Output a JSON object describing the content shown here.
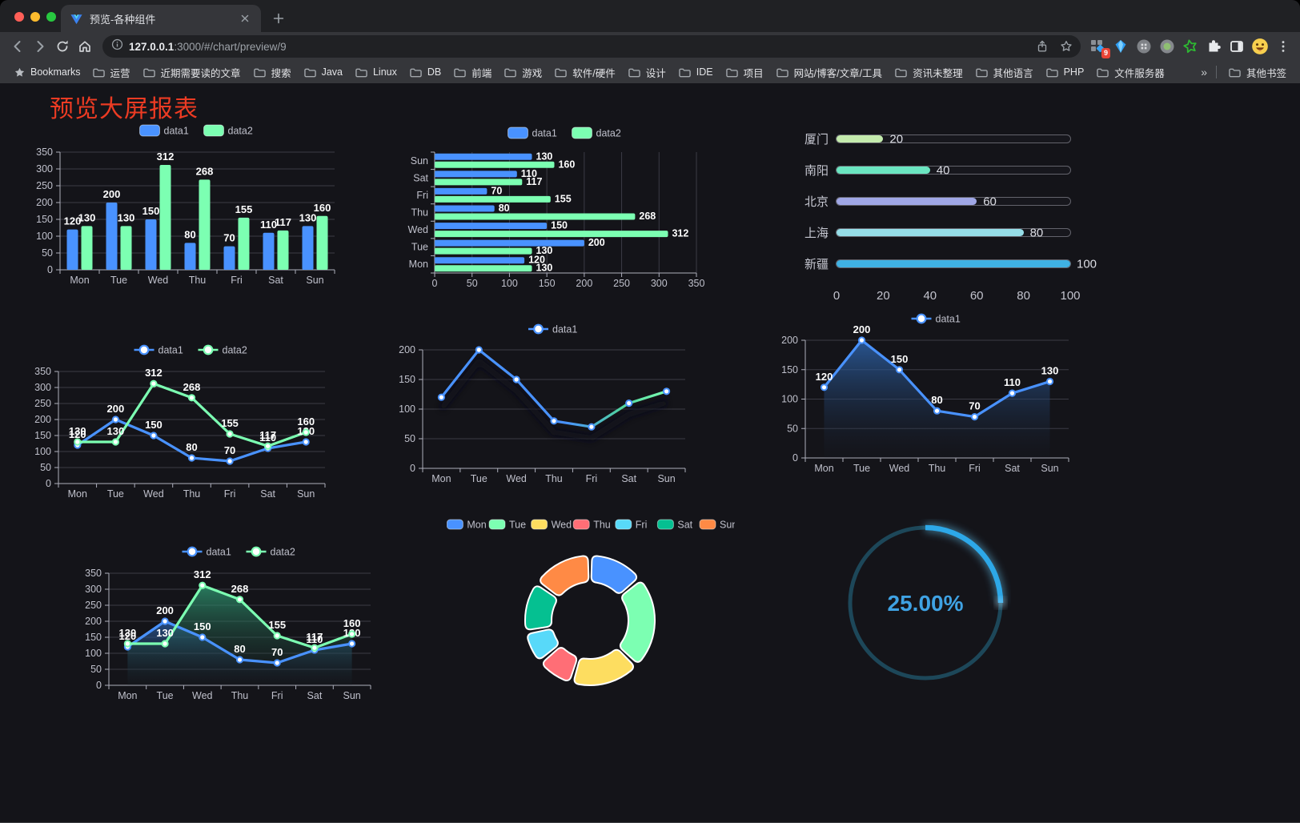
{
  "browser": {
    "tab_title": "预览-各种组件",
    "url_host": "127.0.0.1",
    "url_rest": ":3000/#/chart/preview/9",
    "extension_badge": "9",
    "bookmarks_root_label": "Bookmarks",
    "bookmark_folders": [
      "运营",
      "近期需要读的文章",
      "搜索",
      "Java",
      "Linux",
      "DB",
      "前端",
      "游戏",
      "软件/硬件",
      "设计",
      "IDE",
      "项目",
      "网站/博客/文章/工具",
      "资讯未整理",
      "其他语言",
      "PHP",
      "文件服务器"
    ],
    "bookmarks_overflow": "»",
    "other_bookmarks_label": "其他书签"
  },
  "page": {
    "title": "预览大屏报表",
    "title_color": "#ec3b23"
  },
  "chart_data": {
    "grouped_bar": {
      "type": "bar",
      "categories": [
        "Mon",
        "Tue",
        "Wed",
        "Thu",
        "Fri",
        "Sat",
        "Sun"
      ],
      "series": [
        {
          "name": "data1",
          "color": "#4992ff",
          "values": [
            120,
            200,
            150,
            80,
            70,
            110,
            130
          ]
        },
        {
          "name": "data2",
          "color": "#7cffb2",
          "values": [
            130,
            130,
            312,
            268,
            155,
            117,
            160
          ]
        }
      ],
      "ylim": [
        0,
        350
      ],
      "yticks": [
        0,
        50,
        100,
        150,
        200,
        250,
        300,
        350
      ],
      "legend_position": "top",
      "grid": true
    },
    "horizontal_bar": {
      "type": "bar",
      "orientation": "horizontal",
      "categories": [
        "Mon",
        "Tue",
        "Wed",
        "Thu",
        "Fri",
        "Sat",
        "Sun"
      ],
      "display_order_top_to_bottom": [
        "Sun",
        "Sat",
        "Fri",
        "Thu",
        "Wed",
        "Tue",
        "Mon"
      ],
      "series": [
        {
          "name": "data1",
          "color": "#4992ff",
          "values": [
            120,
            200,
            150,
            80,
            70,
            110,
            130
          ]
        },
        {
          "name": "data2",
          "color": "#7cffb2",
          "values": [
            130,
            130,
            312,
            268,
            155,
            117,
            160
          ]
        }
      ],
      "xlim": [
        0,
        350
      ],
      "xticks": [
        0,
        50,
        100,
        150,
        200,
        250,
        300,
        350
      ],
      "legend_position": "top",
      "grid": true
    },
    "progress_bars": {
      "type": "bar",
      "style": "capsule-progress",
      "rows": [
        {
          "label": "厦门",
          "value": 20,
          "color": "#c4ebad"
        },
        {
          "label": "南阳",
          "value": 40,
          "color": "#6be6c1"
        },
        {
          "label": "北京",
          "value": 60,
          "color": "#a0a7e6"
        },
        {
          "label": "上海",
          "value": 80,
          "color": "#96dee8"
        },
        {
          "label": "新疆",
          "value": 100,
          "color": "#3fb1e3"
        }
      ],
      "xlim": [
        0,
        100
      ],
      "xticks": [
        0,
        20,
        40,
        60,
        80,
        100
      ]
    },
    "line_two": {
      "type": "line",
      "categories": [
        "Mon",
        "Tue",
        "Wed",
        "Thu",
        "Fri",
        "Sat",
        "Sun"
      ],
      "series": [
        {
          "name": "data1",
          "color": "#4992ff",
          "values": [
            120,
            200,
            150,
            80,
            70,
            110,
            130
          ]
        },
        {
          "name": "data2",
          "color": "#7cffb2",
          "values": [
            130,
            130,
            312,
            268,
            155,
            117,
            160
          ]
        }
      ],
      "ylim": [
        0,
        350
      ],
      "yticks": [
        0,
        50,
        100,
        150,
        200,
        250,
        300,
        350
      ],
      "legend_position": "top",
      "point_labels": true
    },
    "line_gradient": {
      "type": "line",
      "categories": [
        "Mon",
        "Tue",
        "Wed",
        "Thu",
        "Fri",
        "Sat",
        "Sun"
      ],
      "series": [
        {
          "name": "data1",
          "color": "#4992ff",
          "gradient": [
            "#4992ff",
            "#7cffb2"
          ],
          "values": [
            120,
            200,
            150,
            80,
            70,
            110,
            130
          ]
        }
      ],
      "ylim": [
        0,
        200
      ],
      "yticks": [
        0,
        50,
        100,
        150,
        200
      ],
      "legend_position": "top",
      "point_labels": false,
      "shadow": true
    },
    "area_one": {
      "type": "area",
      "categories": [
        "Mon",
        "Tue",
        "Wed",
        "Thu",
        "Fri",
        "Sat",
        "Sun"
      ],
      "series": [
        {
          "name": "data1",
          "color": "#4992ff",
          "values": [
            120,
            200,
            150,
            80,
            70,
            110,
            130
          ]
        }
      ],
      "ylim": [
        0,
        200
      ],
      "yticks": [
        0,
        50,
        100,
        150,
        200
      ],
      "legend_position": "top",
      "point_labels": true
    },
    "area_two": {
      "type": "area",
      "categories": [
        "Mon",
        "Tue",
        "Wed",
        "Thu",
        "Fri",
        "Sat",
        "Sun"
      ],
      "series": [
        {
          "name": "data1",
          "color": "#4992ff",
          "values": [
            120,
            200,
            150,
            80,
            70,
            110,
            130
          ]
        },
        {
          "name": "data2",
          "color": "#7cffb2",
          "values": [
            130,
            130,
            312,
            268,
            155,
            117,
            160
          ]
        }
      ],
      "ylim": [
        0,
        350
      ],
      "yticks": [
        0,
        50,
        100,
        150,
        200,
        250,
        300,
        350
      ],
      "legend_position": "top",
      "point_labels": true
    },
    "donut": {
      "type": "pie",
      "style": "donut-rounded",
      "labels": [
        "Mon",
        "Tue",
        "Wed",
        "Thu",
        "Fri",
        "Sat",
        "Sun"
      ],
      "values": [
        120,
        200,
        150,
        80,
        70,
        110,
        130
      ],
      "colors": [
        "#4992ff",
        "#7cffb2",
        "#fddd60",
        "#ff6e76",
        "#58d9f9",
        "#05c091",
        "#ff8a45"
      ],
      "legend_position": "top"
    },
    "gauge": {
      "type": "gauge",
      "percent": 25,
      "label": "25.00%",
      "color": "#2da8e8",
      "track_color": "#1d4759",
      "text_color": "#3fa2e3"
    }
  }
}
